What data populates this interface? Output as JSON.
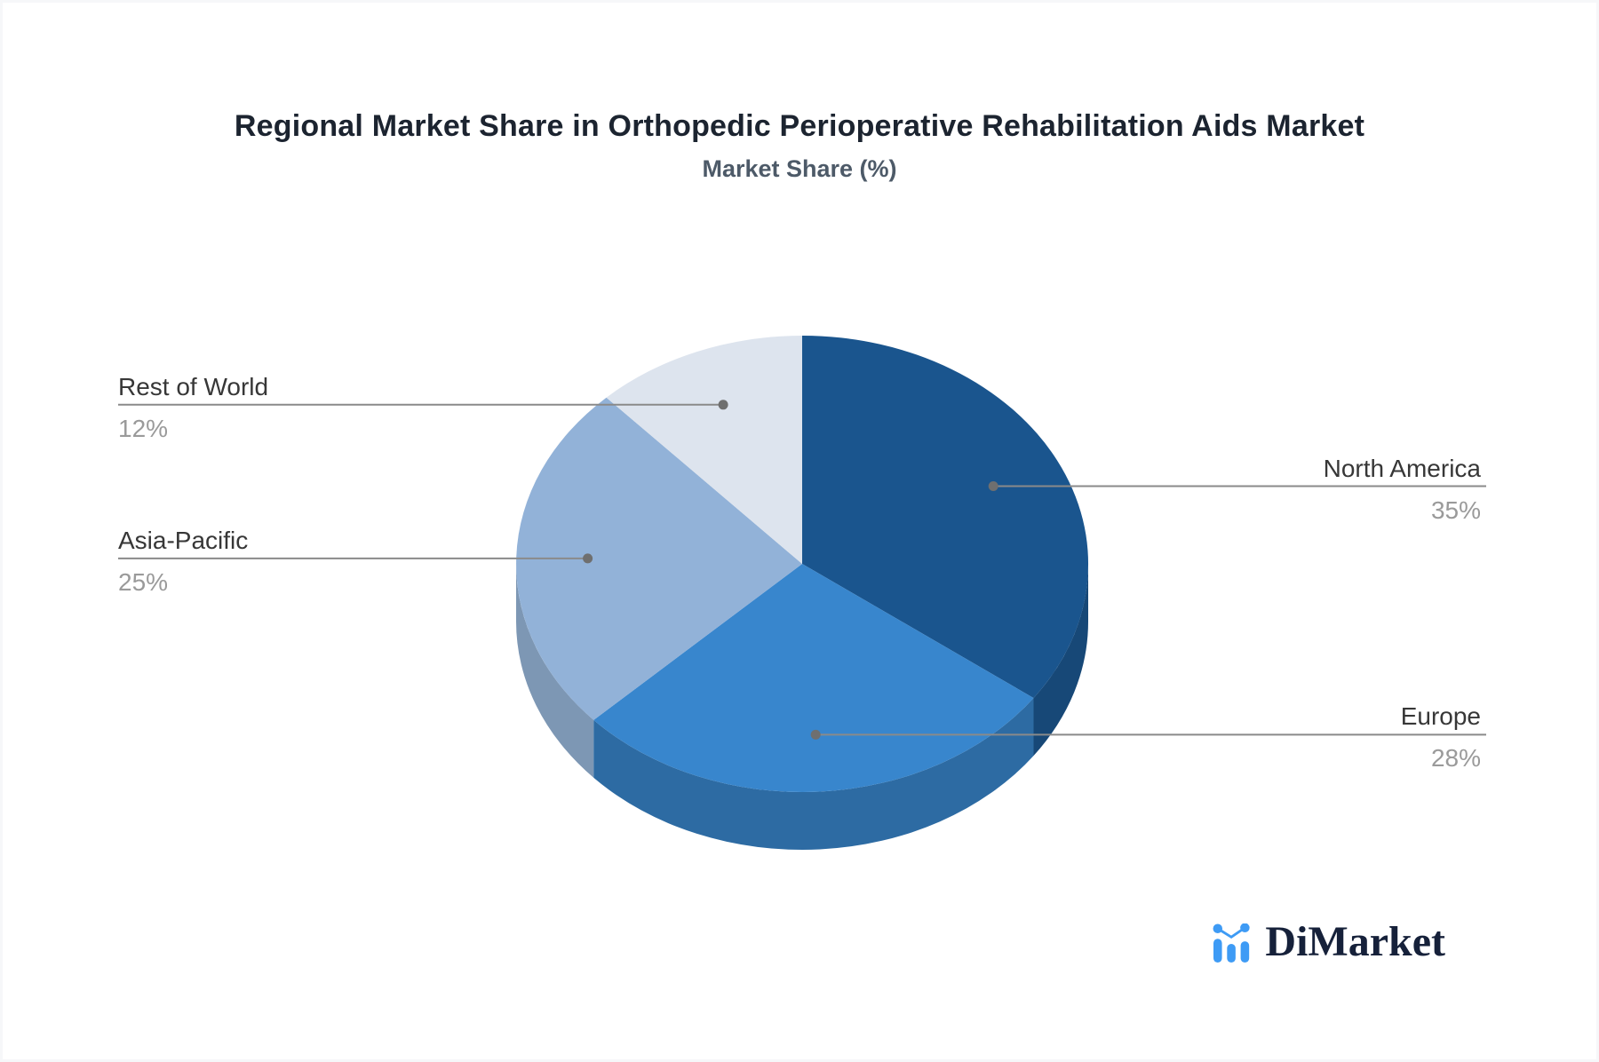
{
  "page": {
    "title": "Regional Market Share in Orthopedic Perioperative Rehabilitation Aids Market",
    "subtitle": "Market Share (%)"
  },
  "brand": {
    "name": "DiMarket",
    "icon": "bar-chart-logo-icon",
    "icon_color": "#3e9bf5",
    "text_color": "#16213a"
  },
  "chart_data": {
    "type": "pie",
    "style": "3d",
    "title": "Regional Market Share in Orthopedic Perioperative Rehabilitation Aids Market",
    "subtitle": "Market Share (%)",
    "unit": "%",
    "start_angle": "12 o'clock",
    "direction": "clockwise",
    "legend_position": "none",
    "slices": [
      {
        "label": "North America",
        "value": 35,
        "display_value": "35%",
        "color": "#1a558e",
        "side_color": "#174877"
      },
      {
        "label": "Europe",
        "value": 28,
        "display_value": "28%",
        "color": "#3886cd",
        "side_color": "#2d6ba3"
      },
      {
        "label": "Asia-Pacific",
        "value": 25,
        "display_value": "25%",
        "color": "#92b2d8",
        "side_color": "#7d97b4"
      },
      {
        "label": "Rest of World",
        "value": 12,
        "display_value": "12%",
        "color": "#dde4ee",
        "side_color": "#c3cedd"
      }
    ],
    "label_text_color": "#373737",
    "value_text_color": "#9a9a9a",
    "leader_line_color": "#8a8a8a",
    "leader_dot_color": "#6f6f6f"
  }
}
